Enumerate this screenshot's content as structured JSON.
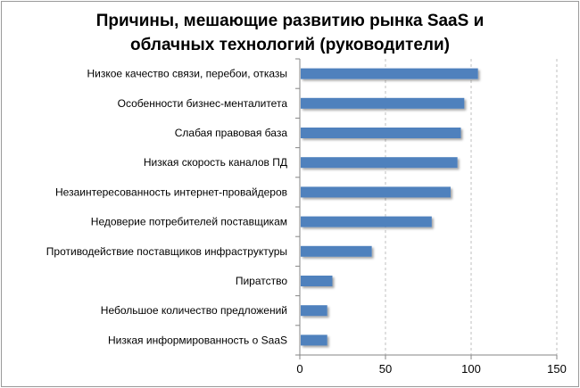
{
  "chart_data": {
    "type": "bar",
    "orientation": "horizontal",
    "title_lines": [
      "Причины, мешающие развитию рынка SaaS и",
      "облачных технологий (руководители)"
    ],
    "categories": [
      "Низкое качество связи, перебои, отказы",
      "Особенности бизнес-менталитета",
      "Слабая правовая база",
      "Низкая скорость каналов ПД",
      "Незаинтересованность интернет-провайдеров",
      "Недоверие потребителей поставщикам",
      "Противодействие поставщиков инфраструктуры",
      "Пиратство",
      "Небольшое количество предложений",
      "Низкая информированность о SaaS"
    ],
    "values": [
      104,
      96,
      94,
      92,
      88,
      77,
      42,
      19,
      16,
      16
    ],
    "xlim": [
      0,
      150
    ],
    "xticks": [
      0,
      50,
      100,
      150
    ],
    "grid": "vertical dashed",
    "bar_color": "#4f81bd"
  }
}
